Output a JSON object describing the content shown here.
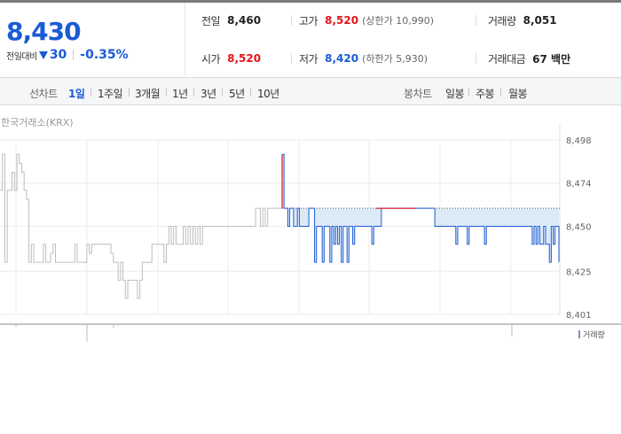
{
  "summary": {
    "current_price": "8,430",
    "change_label": "전일대비",
    "change_value": "30",
    "change_direction": "down",
    "change_rate": "-0.35%"
  },
  "stats": {
    "prev_close": {
      "label": "전일",
      "value": "8,460"
    },
    "open": {
      "label": "시가",
      "value": "8,520"
    },
    "high": {
      "label": "고가",
      "value": "8,520",
      "sub": "(상한가 10,990)"
    },
    "low": {
      "label": "저가",
      "value": "8,420",
      "sub": "(하한가 5,930)"
    },
    "volume": {
      "label": "거래량",
      "value": "8,051"
    },
    "amount": {
      "label": "거래대금",
      "value": "67 백만"
    }
  },
  "period_bar": {
    "line_title": "선차트",
    "line_periods": [
      "1일",
      "1주일",
      "3개월",
      "1년",
      "3년",
      "5년",
      "10년"
    ],
    "active_period": "1일",
    "candle_title": "봉차트",
    "candle_periods": [
      "일봉",
      "주봉",
      "월봉"
    ]
  },
  "chart_source": "한국거래소(KRX)",
  "legend_volume": "거래량",
  "colors": {
    "up": "#e3141b",
    "down": "#1a5bd6",
    "prev_day": "#bdbdbd",
    "fill": "#dce9f7"
  },
  "chart_data": {
    "type": "line",
    "y_ticks": [
      8498,
      8474,
      8450,
      8425,
      8401
    ],
    "ylim": [
      8401,
      8498
    ],
    "reference_line": 8460,
    "series": [
      {
        "name": "",
        "values": [
          8470,
          8490,
          8430,
          8470,
          8470,
          8480,
          8470,
          8490,
          8485,
          8480,
          8470,
          8465,
          8430,
          8440,
          8430,
          8430,
          8430,
          8430,
          8440,
          8430,
          8430,
          8435,
          8440,
          8430,
          8430,
          8430,
          8430,
          8430,
          8430,
          8430,
          8430,
          8440,
          8430,
          8430,
          8430,
          8430,
          8440,
          8435,
          8440,
          8440,
          8440,
          8440,
          8440,
          8440,
          8440,
          8440,
          8435,
          8430,
          8430,
          8420,
          8430,
          8420,
          8410,
          8420,
          8420,
          8420,
          8420,
          8410,
          8420,
          8430,
          8430,
          8430,
          8430,
          8440,
          8440,
          8440,
          8440,
          8440,
          8430,
          8440,
          8450,
          8440,
          8450,
          8440,
          8440,
          8440,
          8450,
          8440,
          8450,
          8440,
          8450,
          8440,
          8450,
          8440,
          8450,
          8450,
          8450,
          8450,
          8450,
          8450,
          8450,
          8450,
          8450,
          8450,
          8450,
          8450,
          8450,
          8450,
          8450,
          8450,
          8450,
          8450,
          8450,
          8450,
          8450,
          8450,
          8460,
          8460,
          8450,
          8460,
          8450,
          8460,
          8460,
          8460,
          8460,
          8460,
          8460,
          8460
        ]
      },
      {
        "name": "",
        "values": [
          8490,
          8460,
          8460,
          8450,
          8460,
          8460,
          8450,
          8450,
          8460,
          8450,
          8450,
          8450,
          8450,
          8450,
          8460,
          8460,
          8460,
          8430,
          8450,
          8450,
          8450,
          8430,
          8450,
          8450,
          8450,
          8430,
          8450,
          8440,
          8450,
          8440,
          8450,
          8430,
          8450,
          8450,
          8430,
          8450,
          8450,
          8440,
          8450,
          8450,
          8450,
          8450,
          8450,
          8450,
          8450,
          8450,
          8450,
          8440,
          8450,
          8450,
          8450,
          8450,
          8460,
          8460,
          8460,
          8460,
          8460,
          8460,
          8460,
          8460,
          8460,
          8460,
          8460,
          8460,
          8460,
          8460,
          8460,
          8460,
          8460,
          8460,
          8460,
          8460,
          8460,
          8460,
          8460,
          8460,
          8460,
          8460,
          8460,
          8460,
          8450,
          8450,
          8450,
          8450,
          8450,
          8450,
          8450,
          8450,
          8450,
          8450,
          8450,
          8440,
          8450,
          8450,
          8450,
          8450,
          8450,
          8440,
          8450,
          8450,
          8450,
          8450,
          8450,
          8450,
          8450,
          8450,
          8440,
          8450,
          8450,
          8450,
          8450,
          8450,
          8450,
          8450,
          8450,
          8450,
          8450,
          8450,
          8450,
          8450,
          8450,
          8450,
          8450,
          8450,
          8450,
          8450,
          8450,
          8450,
          8450,
          8450,
          8450,
          8440,
          8450,
          8440,
          8450,
          8440,
          8440,
          8450,
          8440,
          8440,
          8430,
          8450,
          8440,
          8450,
          8450,
          8430
        ]
      }
    ],
    "xlabel": "",
    "ylabel": "",
    "grid": true
  }
}
